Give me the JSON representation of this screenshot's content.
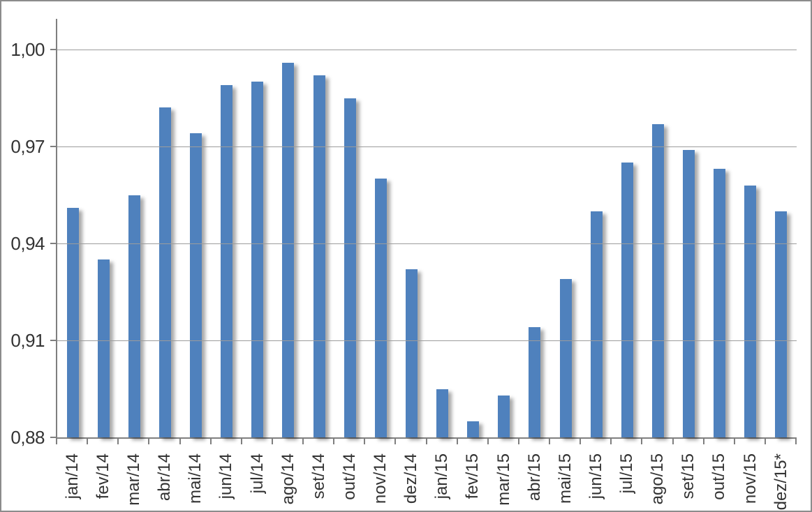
{
  "figure": {
    "background": "#ffffff",
    "border_color": "#8c8c8c",
    "text_color": "#333333"
  },
  "chart_data": {
    "type": "bar",
    "title": "",
    "xlabel": "",
    "ylabel": "",
    "categories": [
      "jan/14",
      "fev/14",
      "mar/14",
      "abr/14",
      "mai/14",
      "jun/14",
      "jul/14",
      "ago/14",
      "set/14",
      "out/14",
      "nov/14",
      "dez/14",
      "jan/15",
      "fev/15",
      "mar/15",
      "abr/15",
      "mai/15",
      "jun/15",
      "jul/15",
      "ago/15",
      "set/15",
      "out/15",
      "nov/15",
      "dez/15*"
    ],
    "values": [
      0.951,
      0.935,
      0.955,
      0.982,
      0.974,
      0.989,
      0.99,
      0.996,
      0.992,
      0.985,
      0.96,
      0.932,
      0.895,
      0.885,
      0.893,
      0.914,
      0.929,
      0.95,
      0.965,
      0.977,
      0.969,
      0.963,
      0.958,
      0.95
    ],
    "y_ticks": [
      "1,00",
      "0,97",
      "0,94",
      "0,91",
      "0,88"
    ],
    "y_tick_values": [
      1.0,
      0.97,
      0.94,
      0.91,
      0.88
    ],
    "ylim": [
      0.88,
      1.0095
    ],
    "decimal_separator": ",",
    "grid": "horizontal",
    "legend": "none",
    "bar_color": "#4f81bd",
    "gridline_color": "#9c9c9c",
    "axis_color": "#7f7f7f"
  }
}
